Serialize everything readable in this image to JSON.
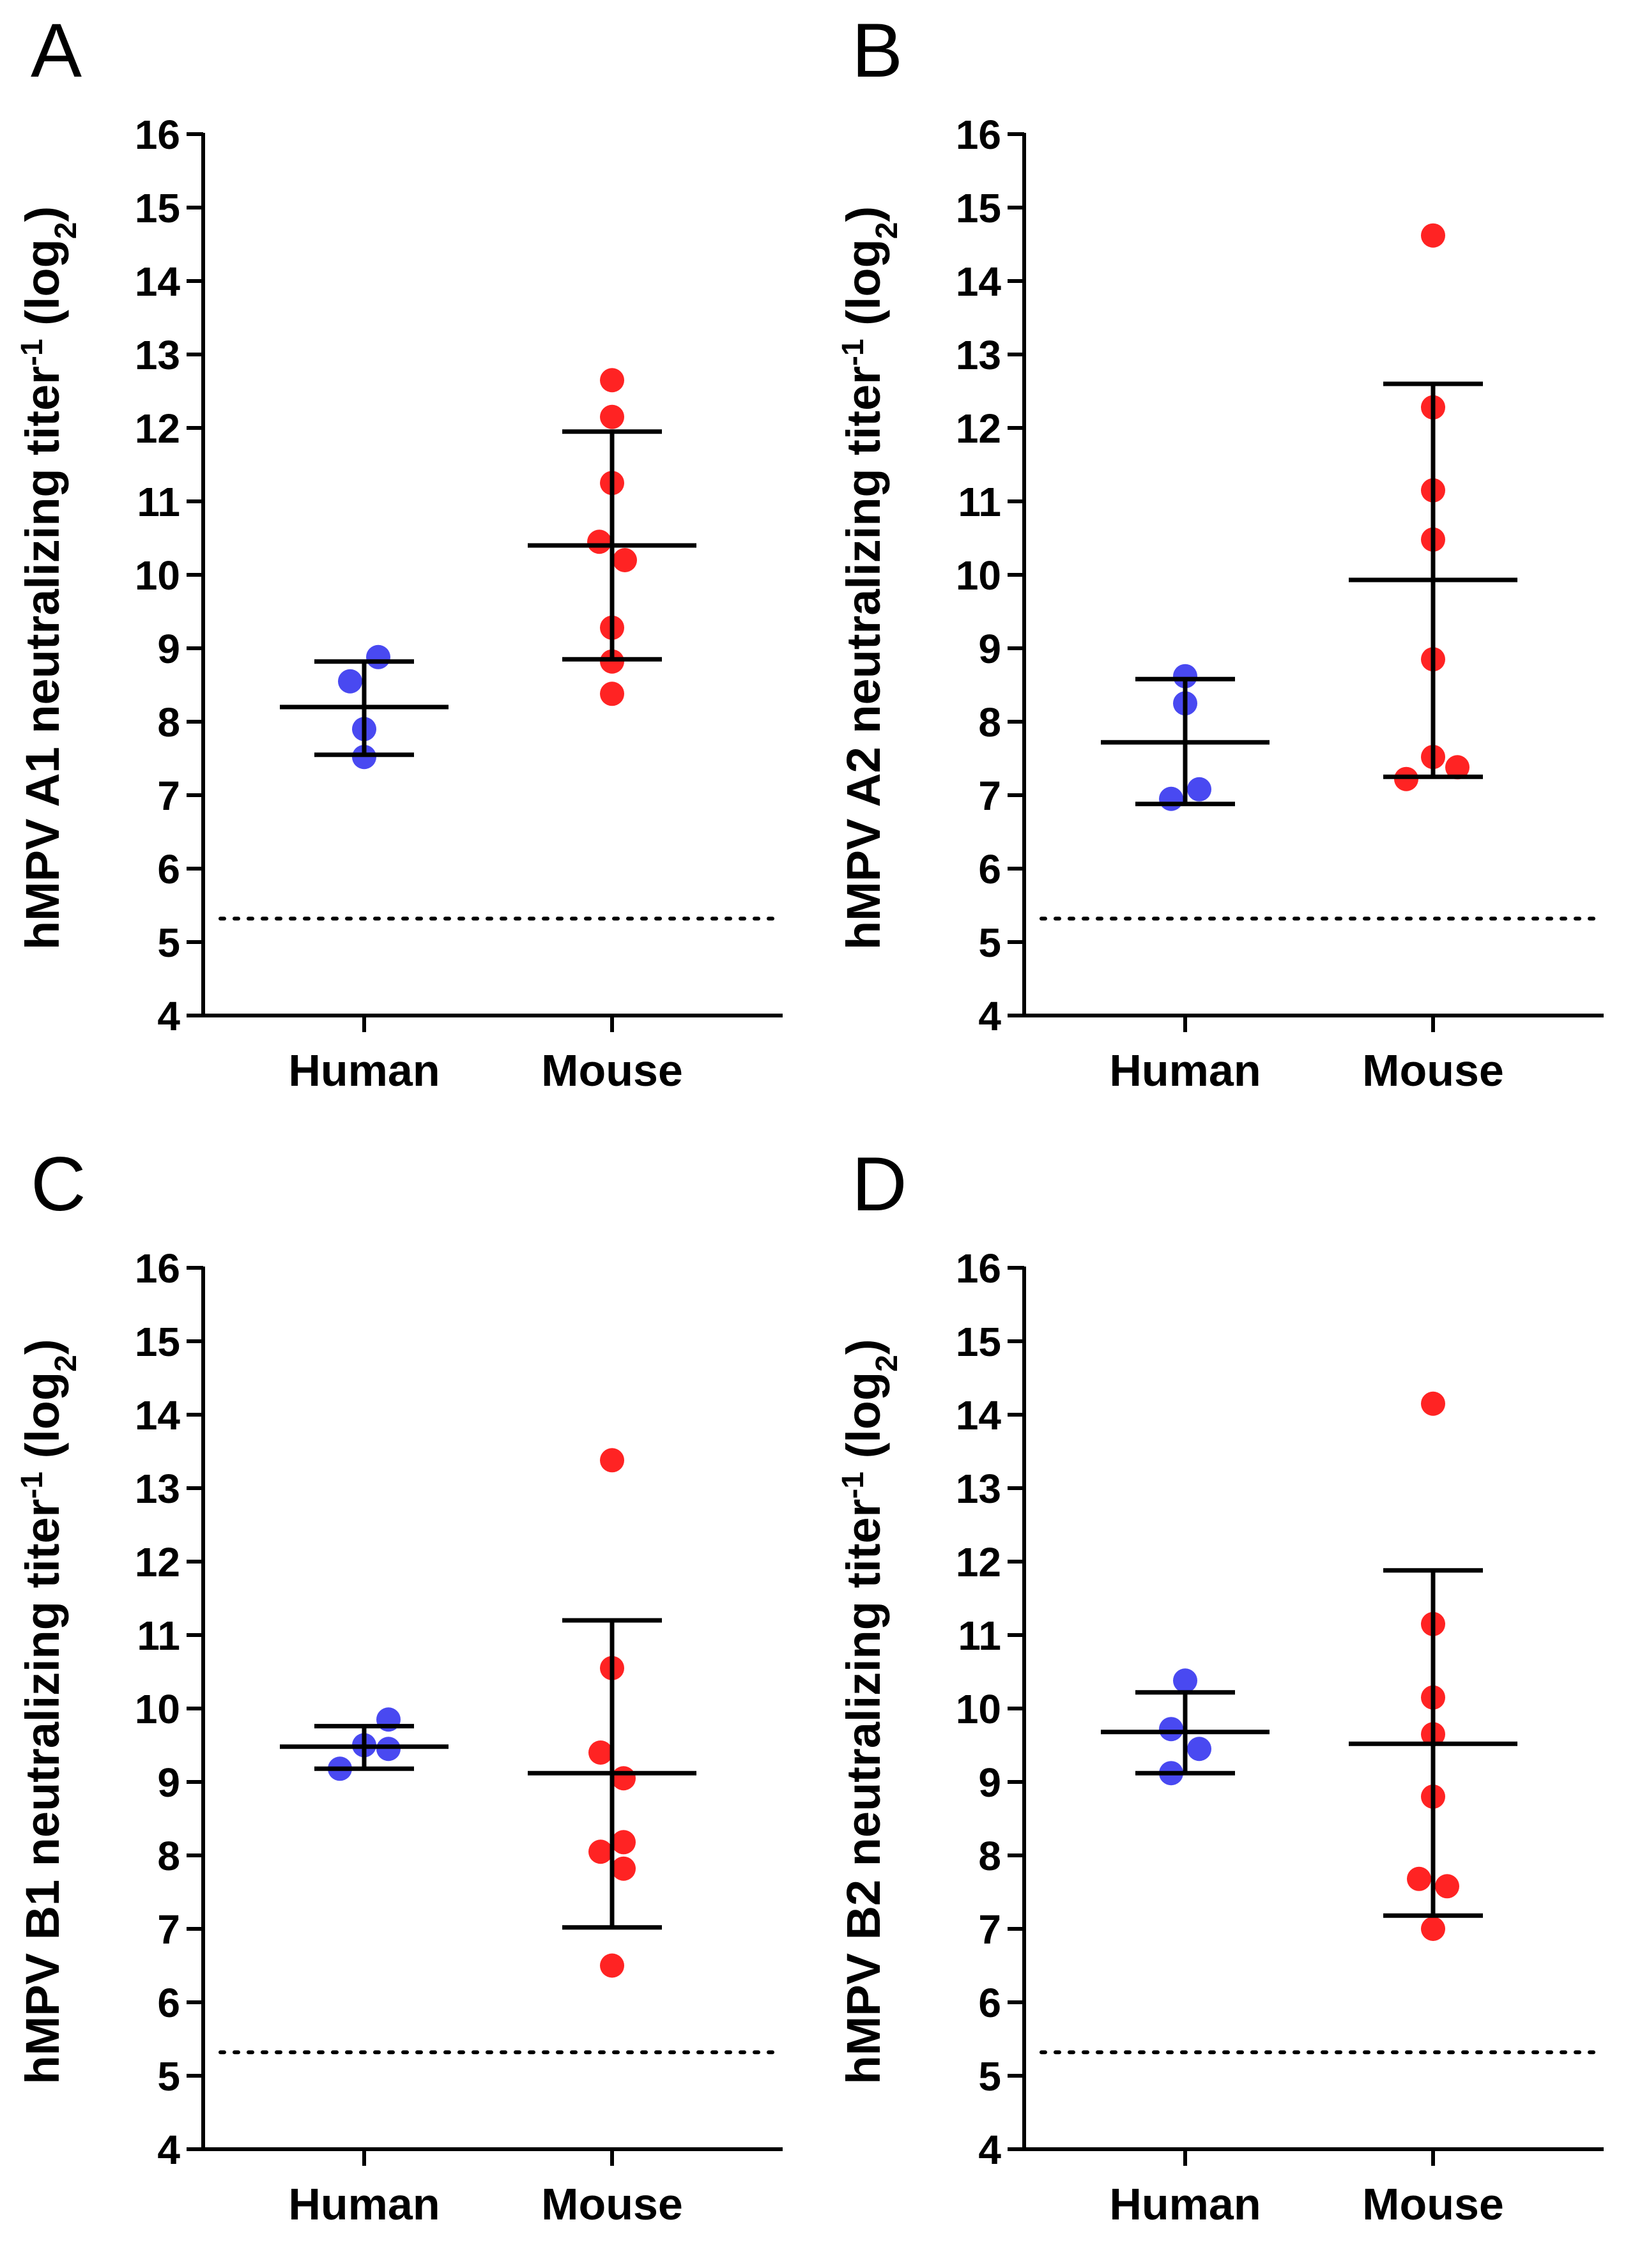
{
  "chart_data": [
    {
      "panel": "A",
      "type": "scatter",
      "ylabel": {
        "prefix": "hMPV A1 neutralizing titer",
        "sup": "-1",
        "open": " (log",
        "sub": "2",
        "close": ")"
      },
      "xlabel": "",
      "categories": [
        "Human",
        "Mouse"
      ],
      "ylim": [
        4,
        16
      ],
      "yticks": [
        "4",
        "5",
        "6",
        "7",
        "8",
        "9",
        "10",
        "11",
        "12",
        "13",
        "14",
        "15",
        "16"
      ],
      "limit_of_detection": 5.32,
      "series": [
        {
          "name": "Human",
          "color": "#3a3af0",
          "points": [
            8.55,
            8.88,
            7.9,
            7.52
          ],
          "offsets": [
            -0.55,
            0.55,
            0.0,
            0.0
          ],
          "mean": 8.2,
          "sd_low": 7.55,
          "sd_high": 8.82
        },
        {
          "name": "Mouse",
          "color": "#ff1010",
          "points": [
            12.65,
            12.15,
            11.25,
            10.45,
            10.2,
            9.28,
            8.82,
            8.38
          ],
          "offsets": [
            0.0,
            0.0,
            0.0,
            -0.5,
            0.5,
            0.0,
            0.0,
            0.0
          ],
          "mean": 10.4,
          "sd_low": 8.85,
          "sd_high": 11.95
        }
      ]
    },
    {
      "panel": "B",
      "type": "scatter",
      "ylabel": {
        "prefix": "hMPV A2 neutralizing titer",
        "sup": "-1",
        "open": " (log",
        "sub": "2",
        "close": ")"
      },
      "xlabel": "",
      "categories": [
        "Human",
        "Mouse"
      ],
      "ylim": [
        4,
        16
      ],
      "yticks": [
        "4",
        "5",
        "6",
        "7",
        "8",
        "9",
        "10",
        "11",
        "12",
        "13",
        "14",
        "15",
        "16"
      ],
      "limit_of_detection": 5.32,
      "series": [
        {
          "name": "Human",
          "color": "#3a3af0",
          "points": [
            8.62,
            8.25,
            7.08,
            6.95
          ],
          "offsets": [
            0.0,
            0.0,
            0.55,
            -0.55
          ],
          "mean": 7.72,
          "sd_low": 6.88,
          "sd_high": 8.58
        },
        {
          "name": "Mouse",
          "color": "#ff1010",
          "points": [
            14.62,
            12.28,
            11.15,
            10.48,
            8.85,
            7.52,
            7.38,
            7.22
          ],
          "offsets": [
            0.0,
            0.0,
            0.0,
            0.0,
            0.0,
            0.0,
            0.95,
            -1.05
          ],
          "mean": 9.93,
          "sd_low": 7.25,
          "sd_high": 12.6
        }
      ]
    },
    {
      "panel": "C",
      "type": "scatter",
      "ylabel": {
        "prefix": "hMPV B1 neutralizing titer",
        "sup": "-1",
        "open": " (log",
        "sub": "2",
        "close": ")"
      },
      "xlabel": "",
      "categories": [
        "Human",
        "Mouse"
      ],
      "ylim": [
        4,
        16
      ],
      "yticks": [
        "4",
        "5",
        "6",
        "7",
        "8",
        "9",
        "10",
        "11",
        "12",
        "13",
        "14",
        "15",
        "16"
      ],
      "limit_of_detection": 5.32,
      "series": [
        {
          "name": "Human",
          "color": "#3a3af0",
          "points": [
            9.85,
            9.5,
            9.45,
            9.18
          ],
          "offsets": [
            0.95,
            0.0,
            0.95,
            -0.95
          ],
          "mean": 9.48,
          "sd_low": 9.18,
          "sd_high": 9.76
        },
        {
          "name": "Mouse",
          "color": "#ff1010",
          "points": [
            13.38,
            10.55,
            9.4,
            9.05,
            8.18,
            8.05,
            7.82,
            6.5
          ],
          "offsets": [
            0.0,
            0.0,
            -0.45,
            0.45,
            0.45,
            -0.45,
            0.45,
            0.0
          ],
          "mean": 9.12,
          "sd_low": 7.02,
          "sd_high": 11.2
        }
      ]
    },
    {
      "panel": "D",
      "type": "scatter",
      "ylabel": {
        "prefix": "hMPV B2 neutralizing titer",
        "sup": "-1",
        "open": " (log",
        "sub": "2",
        "close": ")"
      },
      "xlabel": "",
      "categories": [
        "Human",
        "Mouse"
      ],
      "ylim": [
        4,
        16
      ],
      "yticks": [
        "4",
        "5",
        "6",
        "7",
        "8",
        "9",
        "10",
        "11",
        "12",
        "13",
        "14",
        "15",
        "16"
      ],
      "limit_of_detection": 5.32,
      "series": [
        {
          "name": "Human",
          "color": "#3a3af0",
          "points": [
            10.38,
            9.72,
            9.45,
            9.12
          ],
          "offsets": [
            0.0,
            -0.55,
            0.55,
            -0.55
          ],
          "mean": 9.68,
          "sd_low": 9.12,
          "sd_high": 10.22
        },
        {
          "name": "Mouse",
          "color": "#ff1010",
          "points": [
            14.15,
            11.15,
            10.15,
            9.65,
            8.8,
            7.68,
            7.58,
            7.0
          ],
          "offsets": [
            0.0,
            0.0,
            0.0,
            0.0,
            0.0,
            -0.55,
            0.55,
            0.0
          ],
          "mean": 9.52,
          "sd_low": 7.18,
          "sd_high": 11.88
        }
      ]
    }
  ]
}
